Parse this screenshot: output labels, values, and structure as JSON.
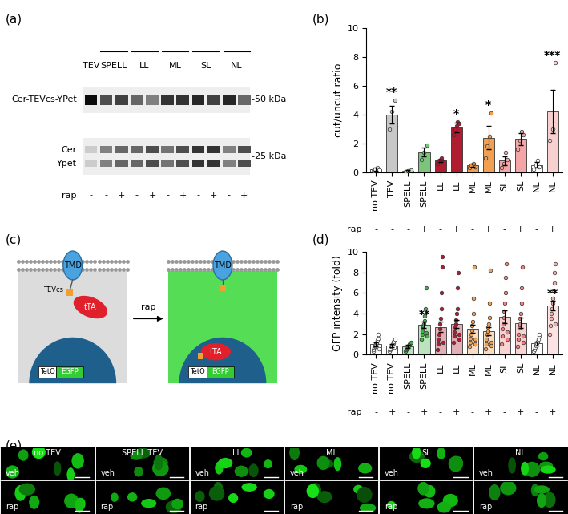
{
  "panel_labels": [
    "(a)",
    "(b)",
    "(c)",
    "(d)",
    "(e)"
  ],
  "panel_a": {
    "left_labels": {
      "upper": "Cer-TEVcs-YPet",
      "lower_1": "Cer",
      "lower_2": "Ypet"
    },
    "right_labels": {
      "upper": "-50 kDa",
      "lower": "-25 kDa"
    },
    "rap_label": "rap",
    "groups": [
      {
        "label": "TEV",
        "rap": [
          "-"
        ],
        "upper": [
          0.95
        ],
        "lower": [
          0.2
        ]
      },
      {
        "label": "SPELL",
        "rap": [
          "-",
          "+"
        ],
        "upper": [
          0.7,
          0.75
        ],
        "lower": [
          0.5,
          0.6
        ]
      },
      {
        "label": "LL",
        "rap": [
          "-",
          "+"
        ],
        "upper": [
          0.6,
          0.5
        ],
        "lower": [
          0.6,
          0.7
        ]
      },
      {
        "label": "ML",
        "rap": [
          "-",
          "+"
        ],
        "upper": [
          0.8,
          0.8
        ],
        "lower": [
          0.55,
          0.7
        ]
      },
      {
        "label": "SL",
        "rap": [
          "-",
          "+"
        ],
        "upper": [
          0.85,
          0.75
        ],
        "lower": [
          0.8,
          0.8
        ]
      },
      {
        "label": "NL",
        "rap": [
          "-",
          "+"
        ],
        "upper": [
          0.85,
          0.6
        ],
        "lower": [
          0.5,
          0.7
        ]
      }
    ]
  },
  "chart_data": [
    {
      "type": "bar",
      "categories": [
        "no TEV",
        "TEV",
        "SPELL",
        "SPELL",
        "LL",
        "LL",
        "ML",
        "ML",
        "SL",
        "SL",
        "NL",
        "NL"
      ],
      "rap": [
        "-",
        "-",
        "-",
        "+",
        "-",
        "+",
        "-",
        "+",
        "-",
        "+",
        "-",
        "+"
      ],
      "rap_label": "rap",
      "values": [
        0.2,
        4.0,
        0.1,
        1.4,
        0.8,
        3.1,
        0.5,
        2.4,
        0.8,
        2.3,
        0.5,
        4.2
      ],
      "errors": [
        0.1,
        0.6,
        0.05,
        0.3,
        0.1,
        0.35,
        0.1,
        0.8,
        0.3,
        0.4,
        0.2,
        1.5
      ],
      "points": [
        [
          0.1,
          0.2,
          0.3,
          0.15
        ],
        [
          3.0,
          4.2,
          5.0
        ],
        [
          0.05,
          0.1,
          0.15
        ],
        [
          0.9,
          1.4,
          1.9
        ],
        [
          0.6,
          0.8,
          0.9,
          1.0,
          0.7
        ],
        [
          2.6,
          3.0,
          3.2,
          3.5,
          3.4
        ],
        [
          0.3,
          0.5,
          0.6,
          0.4
        ],
        [
          1.0,
          1.8,
          2.5,
          4.1
        ],
        [
          0.3,
          0.6,
          1.4,
          0.9
        ],
        [
          1.6,
          2.2,
          2.8,
          2.6
        ],
        [
          0.2,
          0.5,
          0.8,
          0.4
        ],
        [
          2.2,
          3.0,
          7.6
        ]
      ],
      "colors": [
        "#ffffff",
        "#c8c8c8",
        "#b8e0b8",
        "#7cc47c",
        "#b01c30",
        "#b01c30",
        "#f0a050",
        "#f0a050",
        "#f4a6a6",
        "#f4a6a6",
        "#ffffff",
        "#f7d0d0"
      ],
      "significance": [
        null,
        "**",
        null,
        null,
        null,
        "*",
        null,
        "*",
        null,
        null,
        null,
        "***"
      ],
      "ylabel": "cut/uncut ratio",
      "ylim": [
        0,
        10
      ],
      "yticks": [
        0,
        2,
        4,
        6,
        8,
        10
      ]
    },
    {
      "type": "bar",
      "categories": [
        "no TEV",
        "no TEV",
        "SPELL",
        "SPELL",
        "LL",
        "LL",
        "ML",
        "ML",
        "SL",
        "SL",
        "NL",
        "NL"
      ],
      "rap": [
        "-",
        "+",
        "-",
        "+",
        "-",
        "+",
        "-",
        "+",
        "-",
        "+",
        "-",
        "+"
      ],
      "rap_label": "rap",
      "values": [
        1.0,
        0.9,
        0.8,
        2.9,
        2.7,
        3.0,
        2.5,
        2.3,
        3.7,
        3.1,
        1.1,
        4.8
      ],
      "errors": [
        0.2,
        0.15,
        0.15,
        0.3,
        0.5,
        0.4,
        0.4,
        0.4,
        0.6,
        0.5,
        0.2,
        0.45
      ],
      "points": [
        [
          0.3,
          0.5,
          0.7,
          0.8,
          0.9,
          1.0,
          1.1,
          1.2,
          1.4,
          1.6,
          2.0,
          0.6
        ],
        [
          0.3,
          0.5,
          0.6,
          0.8,
          0.9,
          1.0,
          1.1,
          1.3,
          0.7,
          1.5
        ],
        [
          0.3,
          0.5,
          0.6,
          0.7,
          0.8,
          0.9,
          1.0,
          1.1,
          1.2
        ],
        [
          1.5,
          2.0,
          2.3,
          2.6,
          2.8,
          3.0,
          3.3,
          3.8,
          4.5,
          6.5,
          2.1,
          1.8
        ],
        [
          0.5,
          1.0,
          1.5,
          2.0,
          2.5,
          3.0,
          3.5,
          4.5,
          6.0,
          8.5,
          9.5,
          1.2
        ],
        [
          1.2,
          1.8,
          2.2,
          2.7,
          3.0,
          3.4,
          4.0,
          4.5,
          6.5,
          8.0,
          2.0,
          1.5
        ],
        [
          0.8,
          1.2,
          1.6,
          2.0,
          2.4,
          2.8,
          3.2,
          4.0,
          5.5,
          8.5,
          1.0,
          1.5
        ],
        [
          0.6,
          1.0,
          1.5,
          2.0,
          2.3,
          2.7,
          3.0,
          3.6,
          5.0,
          8.2,
          1.2,
          0.9
        ],
        [
          1.0,
          1.8,
          2.5,
          3.0,
          3.6,
          4.2,
          5.0,
          6.0,
          7.5,
          8.8,
          1.5,
          2.2
        ],
        [
          0.8,
          1.5,
          2.0,
          2.6,
          3.0,
          3.5,
          4.0,
          5.0,
          6.5,
          8.5,
          1.2,
          1.8
        ],
        [
          0.3,
          0.5,
          0.7,
          0.9,
          1.0,
          1.1,
          1.3,
          1.5,
          1.8,
          2.0
        ],
        [
          2.0,
          2.8,
          3.5,
          4.0,
          4.5,
          5.0,
          5.5,
          6.2,
          7.0,
          8.0,
          8.8,
          3.0
        ]
      ],
      "colors": [
        "#ffffff",
        "#ffffff",
        "#3cb043",
        "#3cb043",
        "#b01c30",
        "#b01c30",
        "#f0a050",
        "#f0a050",
        "#f08080",
        "#f08080",
        "#ffffff",
        "#f4b0b0"
      ],
      "significance": [
        null,
        null,
        null,
        "**",
        null,
        null,
        null,
        null,
        null,
        null,
        null,
        "**"
      ],
      "ylabel": "GFP intensity (fold)",
      "ylim": [
        0,
        10
      ],
      "yticks": [
        0,
        2,
        4,
        6,
        8,
        10
      ]
    }
  ],
  "panel_c": {
    "membrane_protein": "TMD",
    "cleavage_site": "TEVcs",
    "transcription_factor": "tTA",
    "promoter": "TetO",
    "reporter": "EGFP",
    "arrow_label": "rap"
  },
  "panel_e": {
    "columns": [
      "no TEV",
      "SPELL TEV",
      "LL",
      "ML",
      "SL",
      "NL"
    ],
    "rows": [
      "veh",
      "rap"
    ]
  }
}
